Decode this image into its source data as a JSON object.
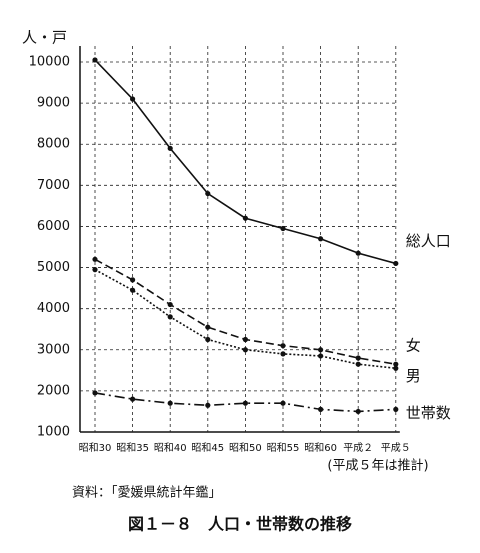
{
  "chart_data": {
    "type": "line",
    "y_label": "人・戸",
    "categories": [
      "昭和30",
      "昭和35",
      "昭和40",
      "昭和45",
      "昭和50",
      "昭和55",
      "昭和60",
      "平成２",
      "平成５"
    ],
    "series": [
      {
        "name": "総人口",
        "color": "#111111",
        "dash": "solid",
        "values": [
          10050,
          9100,
          7900,
          6800,
          6200,
          5950,
          5700,
          5350,
          5100
        ]
      },
      {
        "name": "女",
        "color": "#111111",
        "dash": "dashed",
        "values": [
          5200,
          4700,
          4100,
          3550,
          3250,
          3100,
          3000,
          2800,
          2650
        ]
      },
      {
        "name": "男",
        "color": "#111111",
        "dash": "dotted",
        "values": [
          4950,
          4450,
          3800,
          3250,
          3000,
          2900,
          2850,
          2650,
          2550
        ]
      },
      {
        "name": "世帯数",
        "color": "#111111",
        "dash": "dashdot",
        "values": [
          1950,
          1800,
          1700,
          1650,
          1700,
          1700,
          1550,
          1500,
          1550
        ]
      }
    ],
    "ylim": [
      1000,
      10000
    ],
    "yticks": [
      1000,
      2000,
      3000,
      4000,
      5000,
      6000,
      7000,
      8000,
      9000,
      10000
    ],
    "grid": true,
    "note": "(平成５年は推計)",
    "source": "資料：「愛媛県統計年鑑」",
    "caption": "図１－８　人口・世帯数の推移"
  }
}
